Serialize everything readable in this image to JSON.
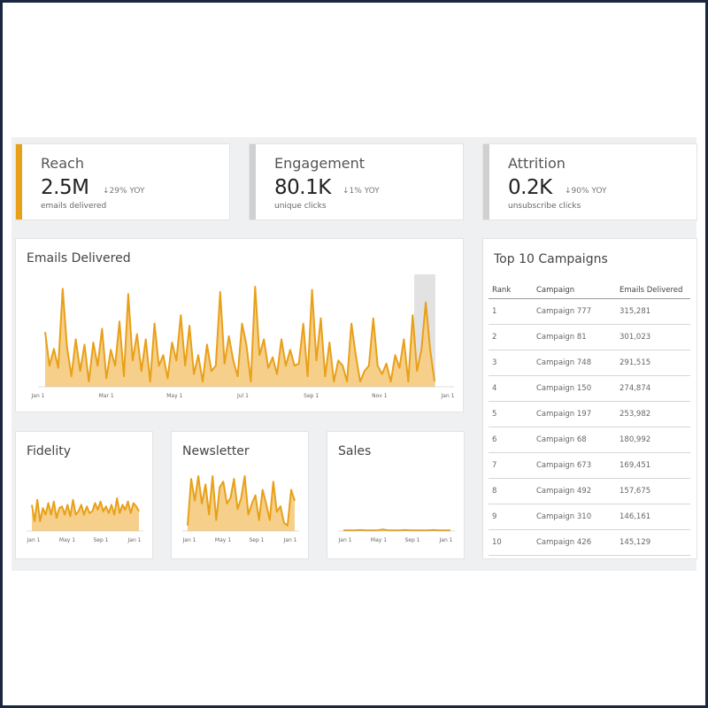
{
  "kpis": [
    {
      "title": "Reach",
      "value": "2.5M",
      "delta": "↓29% YOY",
      "sub": "emails delivered",
      "accent": "#e8a019"
    },
    {
      "title": "Engagement",
      "value": "80.1K",
      "delta": "↓1% YOY",
      "sub": "unique clicks",
      "accent": "#d0d0d0"
    },
    {
      "title": "Attrition",
      "value": "0.2K",
      "delta": "↓90% YOY",
      "sub": "unsubscribe clicks",
      "accent": "#d0d0d0"
    }
  ],
  "emails_delivered": {
    "title": "Emails Delivered",
    "ticks": [
      "Jan 1",
      "Mar 1",
      "May 1",
      "Jul 1",
      "Sep 1",
      "Nov 1",
      "Jan 1"
    ]
  },
  "small_charts": [
    {
      "title": "Fidelity",
      "ticks": [
        "Jan 1",
        "May 1",
        "Sep 1",
        "Jan 1"
      ]
    },
    {
      "title": "Newsletter",
      "ticks": [
        "Jan 1",
        "May 1",
        "Sep 1",
        "Jan 1"
      ]
    },
    {
      "title": "Sales",
      "ticks": [
        "Jan 1",
        "May 1",
        "Sep 1",
        "Jan 1"
      ]
    }
  ],
  "top_campaigns": {
    "title": "Top 10 Campaigns",
    "headers": [
      "Rank",
      "Campaign",
      "Emails Delivered"
    ],
    "rows": [
      [
        "1",
        "Campaign 777",
        "315,281"
      ],
      [
        "2",
        "Campaign 81",
        "301,023"
      ],
      [
        "3",
        "Campaign 748",
        "291,515"
      ],
      [
        "4",
        "Campaign 150",
        "274,874"
      ],
      [
        "5",
        "Campaign 197",
        "253,982"
      ],
      [
        "6",
        "Campaign 68",
        "180,992"
      ],
      [
        "7",
        "Campaign 673",
        "169,451"
      ],
      [
        "8",
        "Campaign 492",
        "157,675"
      ],
      [
        "9",
        "Campaign 310",
        "146,161"
      ],
      [
        "10",
        "Campaign 426",
        "145,129"
      ]
    ]
  },
  "colors": {
    "series": "#e8a019",
    "fill": "#f6cf8a",
    "highlight": "#e2e2e2"
  }
}
